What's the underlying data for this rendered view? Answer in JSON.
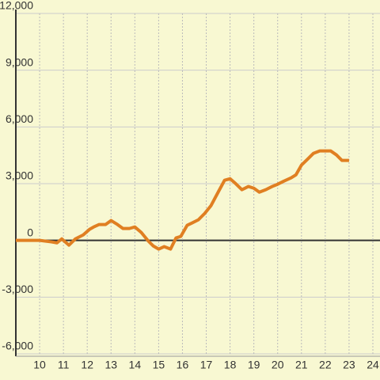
{
  "chart_data": {
    "type": "line",
    "x": [
      9,
      10,
      10.5,
      10.73,
      10.93,
      11.23,
      11.5,
      11.83,
      12.1,
      12.27,
      12.5,
      12.77,
      13,
      13.27,
      13.5,
      13.77,
      14,
      14.27,
      14.57,
      14.77,
      15,
      15.23,
      15.5,
      15.73,
      15.93,
      16.2,
      16.4,
      16.67,
      16.93,
      17.2,
      17.5,
      17.77,
      18,
      18.23,
      18.5,
      18.77,
      19,
      19.23,
      19.5,
      19.77,
      20,
      20.27,
      20.57,
      20.77,
      21,
      21.27,
      21.5,
      21.77,
      22,
      22.23,
      22.47,
      22.7,
      23
    ],
    "series": [
      {
        "color": "#e07f22",
        "values": [
          0,
          0,
          -80,
          -130,
          80,
          -250,
          80,
          290,
          590,
          710,
          840,
          840,
          1050,
          840,
          630,
          630,
          710,
          420,
          -40,
          -290,
          -460,
          -330,
          -460,
          130,
          210,
          800,
          920,
          1090,
          1420,
          1840,
          2550,
          3180,
          3260,
          3010,
          2680,
          2850,
          2760,
          2550,
          2680,
          2850,
          2970,
          3140,
          3310,
          3470,
          3980,
          4310,
          4600,
          4730,
          4730,
          4730,
          4520,
          4230,
          4230
        ]
      }
    ],
    "xlim": [
      9,
      24.3
    ],
    "ylim": [
      -6000,
      12000
    ],
    "xticks": [
      10,
      11,
      12,
      13,
      14,
      15,
      16,
      17,
      18,
      19,
      20,
      21,
      22,
      23,
      24
    ],
    "yticks": [
      {
        "value": -6000,
        "label": "-6,000"
      },
      {
        "value": -3000,
        "label": "-3,000"
      },
      0,
      {
        "value": 3000,
        "label": "3,000"
      },
      {
        "value": 6000,
        "label": "6,000"
      },
      {
        "value": 9000,
        "label": "9,000"
      },
      {
        "value": 12000,
        "label": "12,000"
      }
    ],
    "grid": true
  }
}
